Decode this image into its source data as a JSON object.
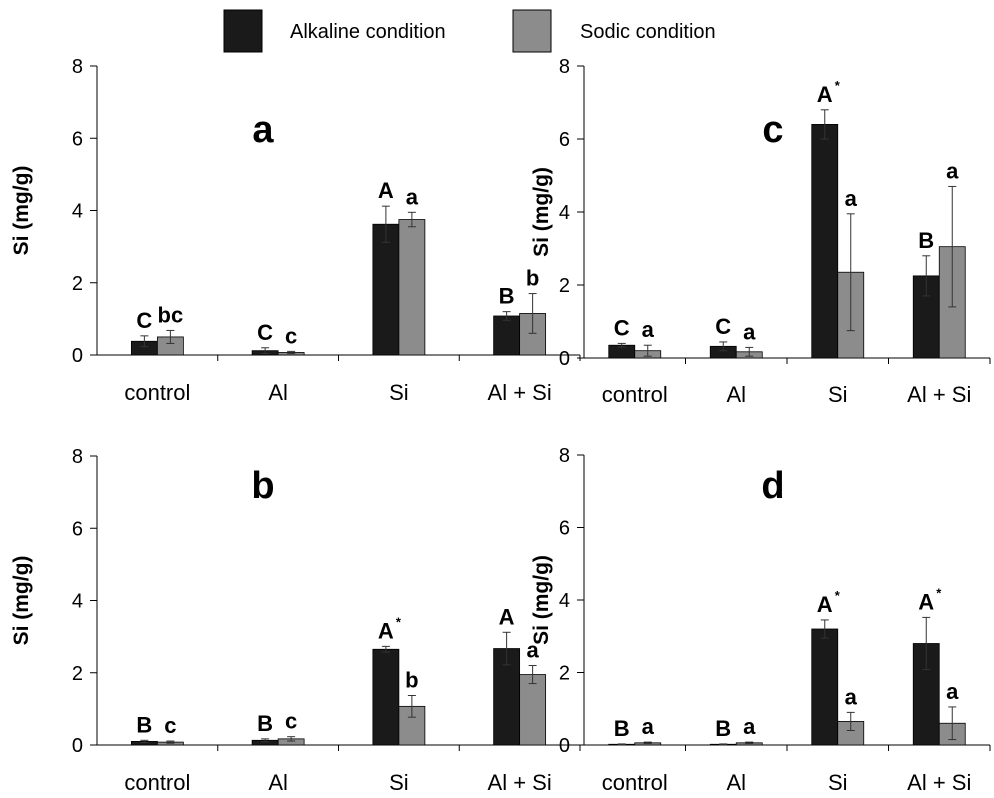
{
  "legend": {
    "items": [
      {
        "label": "Alkaline condition",
        "color": "#1a1a1a"
      },
      {
        "label": "Sodic condition",
        "color": "#8c8c8c"
      }
    ]
  },
  "chart_data": [
    {
      "type": "bar",
      "panel_label": "a",
      "ylabel": "Si (mg/g)",
      "ylim": [
        0,
        8
      ],
      "yticks": [
        0,
        2,
        4,
        6,
        8
      ],
      "categories": [
        "control",
        "Al",
        "Si",
        "Al + Si"
      ],
      "series": [
        {
          "name": "Alkaline condition",
          "values": [
            0.38,
            0.12,
            3.62,
            1.08
          ],
          "errors": [
            0.15,
            0.08,
            0.5,
            0.12
          ],
          "letters": [
            "C",
            "C",
            "A",
            "B"
          ],
          "starred": [
            false,
            false,
            false,
            false
          ]
        },
        {
          "name": "Sodic condition",
          "values": [
            0.5,
            0.07,
            3.75,
            1.15
          ],
          "errors": [
            0.18,
            0.03,
            0.2,
            0.55
          ],
          "letters": [
            "bc",
            "c",
            "a",
            "b"
          ],
          "starred": [
            false,
            false,
            false,
            false
          ]
        }
      ]
    },
    {
      "type": "bar",
      "panel_label": "c",
      "ylabel": "Si (mg/g)",
      "ylim": [
        0,
        8
      ],
      "yticks": [
        0,
        2,
        4,
        6,
        8
      ],
      "categories": [
        "control",
        "Al",
        "Si",
        "Al + Si"
      ],
      "series": [
        {
          "name": "Alkaline condition",
          "values": [
            0.35,
            0.32,
            6.4,
            2.25
          ],
          "errors": [
            0.05,
            0.12,
            0.4,
            0.55
          ],
          "letters": [
            "C",
            "C",
            "A",
            "B"
          ],
          "starred": [
            false,
            false,
            true,
            false
          ]
        },
        {
          "name": "Sodic condition",
          "values": [
            0.2,
            0.17,
            2.35,
            3.05
          ],
          "errors": [
            0.15,
            0.12,
            1.6,
            1.65
          ],
          "letters": [
            "a",
            "a",
            "a",
            "a"
          ],
          "starred": [
            false,
            false,
            false,
            false
          ]
        }
      ]
    },
    {
      "type": "bar",
      "panel_label": "b",
      "ylabel": "Si (mg/g)",
      "ylim": [
        0,
        8
      ],
      "yticks": [
        0,
        2,
        4,
        6,
        8
      ],
      "categories": [
        "control",
        "Al",
        "Si",
        "Al + Si"
      ],
      "series": [
        {
          "name": "Alkaline condition",
          "values": [
            0.1,
            0.13,
            2.65,
            2.67
          ],
          "errors": [
            0.03,
            0.04,
            0.08,
            0.45
          ],
          "letters": [
            "B",
            "B",
            "A",
            "A"
          ],
          "starred": [
            false,
            false,
            true,
            false
          ]
        },
        {
          "name": "Sodic condition",
          "values": [
            0.08,
            0.17,
            1.07,
            1.95
          ],
          "errors": [
            0.03,
            0.06,
            0.3,
            0.25
          ],
          "letters": [
            "c",
            "c",
            "b",
            "a"
          ],
          "starred": [
            false,
            false,
            false,
            false
          ]
        }
      ]
    },
    {
      "type": "bar",
      "panel_label": "d",
      "ylabel": "Si (mg/g)",
      "ylim": [
        0,
        8
      ],
      "yticks": [
        0,
        2,
        4,
        6,
        8
      ],
      "categories": [
        "control",
        "Al",
        "Si",
        "Al + Si"
      ],
      "series": [
        {
          "name": "Alkaline condition",
          "values": [
            0.02,
            0.02,
            3.2,
            2.8
          ],
          "errors": [
            0.01,
            0.01,
            0.25,
            0.72
          ],
          "letters": [
            "B",
            "B",
            "A",
            "A"
          ],
          "starred": [
            false,
            false,
            true,
            true
          ]
        },
        {
          "name": "Sodic condition",
          "values": [
            0.06,
            0.06,
            0.65,
            0.6
          ],
          "errors": [
            0.02,
            0.02,
            0.25,
            0.45
          ],
          "letters": [
            "a",
            "a",
            "a",
            "a"
          ],
          "starred": [
            false,
            false,
            false,
            false
          ]
        }
      ]
    }
  ]
}
